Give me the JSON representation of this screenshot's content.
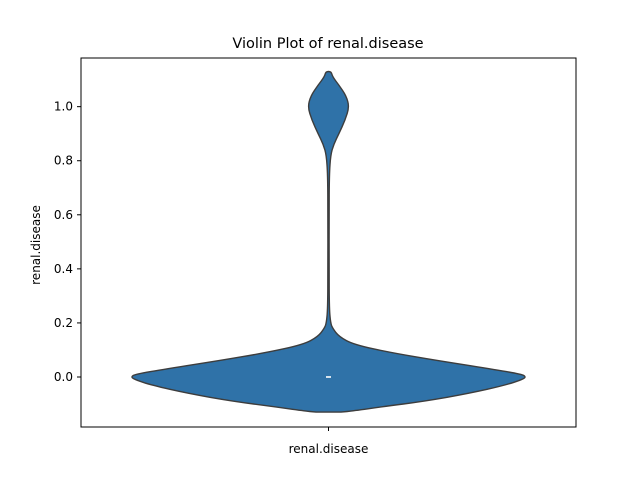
{
  "chart_data": {
    "type": "violin",
    "title": "Violin Plot of renal.disease",
    "xlabel": "",
    "ylabel": "renal.disease",
    "categories": [
      "renal.disease"
    ],
    "ylim": [
      -0.185,
      1.18
    ],
    "yticks": [
      0.0,
      0.2,
      0.4,
      0.6,
      0.8,
      1.0
    ],
    "ytick_labels": [
      "0.0",
      "0.2",
      "0.4",
      "0.6",
      "0.8",
      "1.0"
    ],
    "grid": false,
    "legend": "none",
    "series": [
      {
        "category": "renal.disease",
        "median": 0.0,
        "density": [
          {
            "y": -0.13,
            "hw": 0.06
          },
          {
            "y": -0.125,
            "hw": 0.12
          },
          {
            "y": -0.11,
            "hw": 0.26
          },
          {
            "y": -0.09,
            "hw": 0.46
          },
          {
            "y": -0.06,
            "hw": 0.68
          },
          {
            "y": -0.03,
            "hw": 0.85
          },
          {
            "y": -0.01,
            "hw": 0.93
          },
          {
            "y": 0.0,
            "hw": 0.95
          },
          {
            "y": 0.01,
            "hw": 0.93
          },
          {
            "y": 0.03,
            "hw": 0.78
          },
          {
            "y": 0.06,
            "hw": 0.53
          },
          {
            "y": 0.09,
            "hw": 0.3
          },
          {
            "y": 0.12,
            "hw": 0.12
          },
          {
            "y": 0.15,
            "hw": 0.05
          },
          {
            "y": 0.18,
            "hw": 0.02
          },
          {
            "y": 0.2,
            "hw": 0.01
          },
          {
            "y": 0.25,
            "hw": 0.004
          },
          {
            "y": 0.4,
            "hw": 0.003
          },
          {
            "y": 0.6,
            "hw": 0.003
          },
          {
            "y": 0.75,
            "hw": 0.004
          },
          {
            "y": 0.82,
            "hw": 0.01
          },
          {
            "y": 0.86,
            "hw": 0.025
          },
          {
            "y": 0.9,
            "hw": 0.05
          },
          {
            "y": 0.95,
            "hw": 0.08
          },
          {
            "y": 1.0,
            "hw": 0.1
          },
          {
            "y": 1.04,
            "hw": 0.085
          },
          {
            "y": 1.08,
            "hw": 0.05
          },
          {
            "y": 1.11,
            "hw": 0.02
          },
          {
            "y": 1.13,
            "hw": 0.013
          }
        ]
      }
    ],
    "colors": {
      "fill": "#2f72a8",
      "edge": "#3d3d3d",
      "median": "#ffffff"
    }
  }
}
